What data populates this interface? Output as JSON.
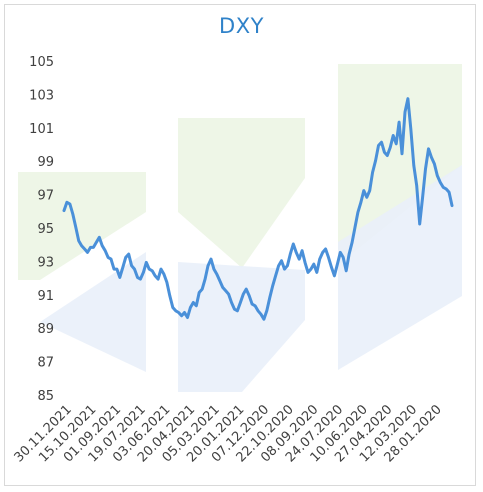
{
  "chart_data": {
    "type": "line",
    "title": "DXY",
    "xlabel": "",
    "ylabel": "",
    "ylim": [
      85,
      105
    ],
    "yticks": [
      85,
      87,
      89,
      91,
      93,
      95,
      97,
      99,
      101,
      103,
      105
    ],
    "x_tick_labels": [
      "30.11.2021",
      "15.10.2021",
      "01.09.2021",
      "19.07.2021",
      "03.06.2021",
      "20.04.2021",
      "05.03.2021",
      "20.01.2021",
      "07.12.2020",
      "22.10.2020",
      "08.09.2020",
      "24.07.2020",
      "10.06.2020",
      "27.04.2020",
      "12.03.2020",
      "28.01.2020"
    ],
    "x_direction": "reverse-chronological (left = most recent)",
    "grid": false,
    "legend": "none",
    "colors": {
      "line": "#4a90d9",
      "title": "#2f82c9",
      "watermark_green": "#eaf4e1",
      "watermark_blue": "#e9f0fa"
    },
    "series": [
      {
        "points": [
          [
            "30.11.2021",
            96.1
          ],
          [
            "25.11.2021",
            96.6
          ],
          [
            "22.11.2021",
            96.5
          ],
          [
            "17.11.2021",
            95.9
          ],
          [
            "12.11.2021",
            95.1
          ],
          [
            "08.11.2021",
            94.3
          ],
          [
            "02.11.2021",
            94.0
          ],
          [
            "27.10.2021",
            93.8
          ],
          [
            "22.10.2021",
            93.6
          ],
          [
            "18.10.2021",
            93.9
          ],
          [
            "15.10.2021",
            93.9
          ],
          [
            "11.10.2021",
            94.2
          ],
          [
            "06.10.2021",
            94.5
          ],
          [
            "01.10.2021",
            94.0
          ],
          [
            "27.09.2021",
            93.7
          ],
          [
            "22.09.2021",
            93.3
          ],
          [
            "17.09.2021",
            93.2
          ],
          [
            "13.09.2021",
            92.6
          ],
          [
            "08.09.2021",
            92.6
          ],
          [
            "03.09.2021",
            92.1
          ],
          [
            "01.09.2021",
            92.7
          ],
          [
            "27.08.2021",
            93.3
          ],
          [
            "23.08.2021",
            93.5
          ],
          [
            "18.08.2021",
            92.8
          ],
          [
            "13.08.2021",
            92.6
          ],
          [
            "09.08.2021",
            92.1
          ],
          [
            "04.08.2021",
            92.0
          ],
          [
            "30.07.2021",
            92.4
          ],
          [
            "26.07.2021",
            93.0
          ],
          [
            "21.07.2021",
            92.6
          ],
          [
            "19.07.2021",
            92.5
          ],
          [
            "14.07.2021",
            92.2
          ],
          [
            "09.07.2021",
            92.0
          ],
          [
            "05.07.2021",
            92.6
          ],
          [
            "30.06.2021",
            92.3
          ],
          [
            "25.06.2021",
            91.8
          ],
          [
            "21.06.2021",
            91.0
          ],
          [
            "16.06.2021",
            90.3
          ],
          [
            "11.06.2021",
            90.1
          ],
          [
            "07.06.2021",
            90.0
          ],
          [
            "03.06.2021",
            89.8
          ],
          [
            "28.05.2021",
            90.0
          ],
          [
            "24.05.2021",
            89.7
          ],
          [
            "19.05.2021",
            90.3
          ],
          [
            "14.05.2021",
            90.6
          ],
          [
            "10.05.2021",
            90.4
          ],
          [
            "05.05.2021",
            91.2
          ],
          [
            "30.04.2021",
            91.4
          ],
          [
            "26.04.2021",
            92.0
          ],
          [
            "20.04.2021",
            92.8
          ],
          [
            "15.04.2021",
            93.2
          ],
          [
            "12.04.2021",
            92.6
          ],
          [
            "07.04.2021",
            92.3
          ],
          [
            "01.04.2021",
            91.9
          ],
          [
            "26.03.2021",
            91.5
          ],
          [
            "22.03.2021",
            91.3
          ],
          [
            "17.03.2021",
            91.1
          ],
          [
            "12.03.2021",
            90.6
          ],
          [
            "08.03.2021",
            90.2
          ],
          [
            "05.03.2021",
            90.1
          ],
          [
            "01.03.2021",
            90.6
          ],
          [
            "24.02.2021",
            91.1
          ],
          [
            "19.02.2021",
            91.4
          ],
          [
            "15.02.2021",
            91.0
          ],
          [
            "10.02.2021",
            90.5
          ],
          [
            "05.02.2021",
            90.4
          ],
          [
            "01.02.2021",
            90.1
          ],
          [
            "27.01.2021",
            89.9
          ],
          [
            "20.01.2021",
            89.6
          ],
          [
            "14.01.2021",
            90.1
          ],
          [
            "08.01.2021",
            90.9
          ],
          [
            "04.01.2021",
            91.6
          ],
          [
            "28.12.2020",
            92.2
          ],
          [
            "21.12.2020",
            92.8
          ],
          [
            "14.12.2020",
            93.1
          ],
          [
            "07.12.2020",
            92.6
          ],
          [
            "01.12.2020",
            92.8
          ],
          [
            "24.11.2020",
            93.5
          ],
          [
            "17.11.2020",
            94.1
          ],
          [
            "10.11.2020",
            93.6
          ],
          [
            "03.11.2020",
            93.2
          ],
          [
            "27.10.2020",
            93.7
          ],
          [
            "22.10.2020",
            93.0
          ],
          [
            "16.10.2020",
            92.4
          ],
          [
            "09.10.2020",
            92.6
          ],
          [
            "02.10.2020",
            92.9
          ],
          [
            "25.09.2020",
            92.4
          ],
          [
            "18.09.2020",
            93.2
          ],
          [
            "11.09.2020",
            93.6
          ],
          [
            "08.09.2020",
            93.8
          ],
          [
            "01.09.2020",
            93.3
          ],
          [
            "25.08.2020",
            92.7
          ],
          [
            "18.08.2020",
            92.2
          ],
          [
            "11.08.2020",
            92.9
          ],
          [
            "04.08.2020",
            93.6
          ],
          [
            "30.07.2020",
            93.3
          ],
          [
            "24.07.2020",
            92.5
          ],
          [
            "17.07.2020",
            93.5
          ],
          [
            "10.07.2020",
            94.2
          ],
          [
            "03.07.2020",
            95.1
          ],
          [
            "26.06.2020",
            96.0
          ],
          [
            "19.06.2020",
            96.6
          ],
          [
            "12.06.2020",
            97.3
          ],
          [
            "10.06.2020",
            96.9
          ],
          [
            "03.06.2020",
            97.3
          ],
          [
            "27.05.2020",
            98.4
          ],
          [
            "20.05.2020",
            99.1
          ],
          [
            "13.05.2020",
            100.0
          ],
          [
            "06.05.2020",
            100.2
          ],
          [
            "01.05.2020",
            99.6
          ],
          [
            "27.04.2020",
            99.4
          ],
          [
            "20.04.2020",
            99.9
          ],
          [
            "14.04.2020",
            100.6
          ],
          [
            "07.04.2020",
            100.1
          ],
          [
            "01.04.2020",
            101.4
          ],
          [
            "27.03.2020",
            99.5
          ],
          [
            "24.03.2020",
            102.0
          ],
          [
            "20.03.2020",
            102.8
          ],
          [
            "18.03.2020",
            101.0
          ],
          [
            "16.03.2020",
            98.8
          ],
          [
            "12.03.2020",
            97.6
          ],
          [
            "09.03.2020",
            95.3
          ],
          [
            "04.03.2020",
            96.9
          ],
          [
            "27.02.2020",
            98.6
          ],
          [
            "20.02.2020",
            99.8
          ],
          [
            "14.02.2020",
            99.3
          ],
          [
            "07.02.2020",
            98.9
          ],
          [
            "03.02.2020",
            98.2
          ],
          [
            "28.01.2020",
            97.8
          ],
          [
            "21.01.2020",
            97.5
          ],
          [
            "14.01.2020",
            97.4
          ],
          [
            "08.01.2020",
            97.2
          ],
          [
            "02.01.2020",
            96.4
          ]
        ]
      }
    ]
  }
}
